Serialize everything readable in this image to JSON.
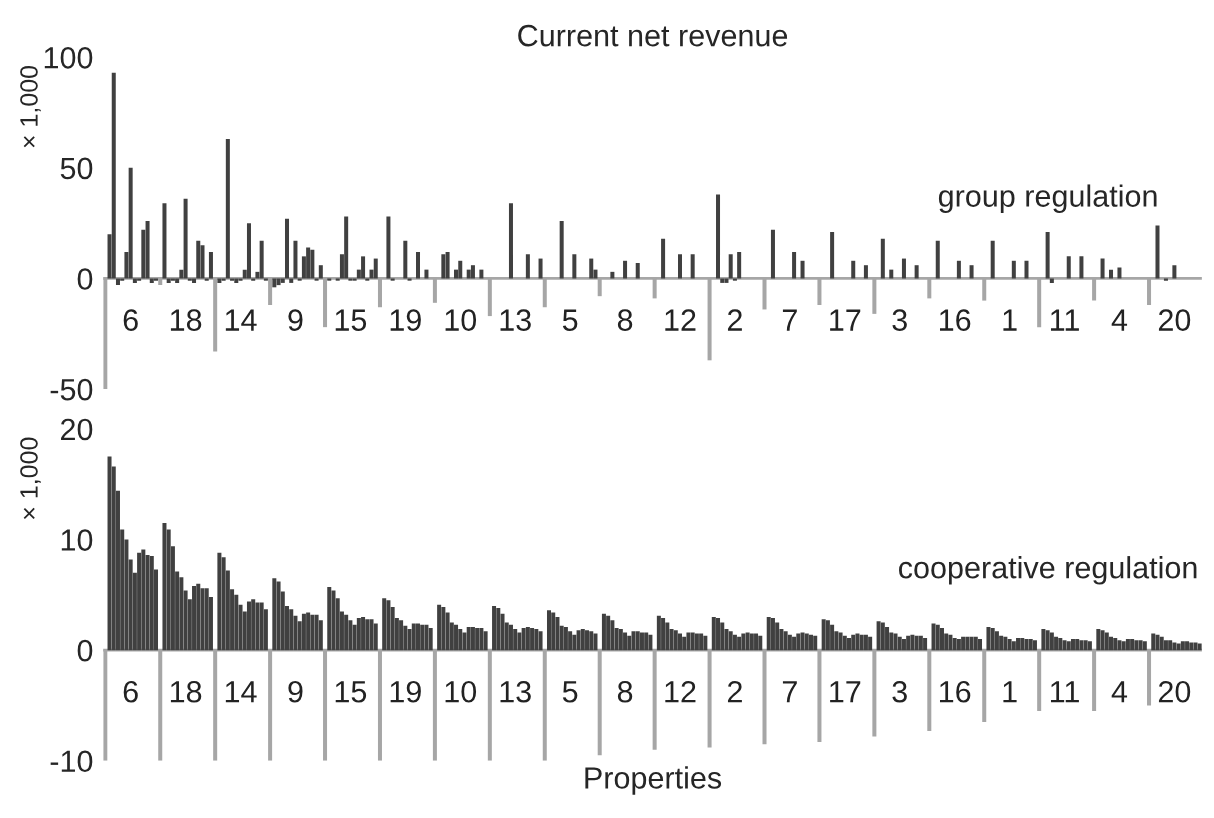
{
  "chart_data": [
    {
      "type": "bar",
      "title": "Current net revenue",
      "ylabel": "× 1,000",
      "annotations": [
        "group regulation"
      ],
      "categories": [
        "6",
        "18",
        "14",
        "9",
        "15",
        "19",
        "10",
        "13",
        "5",
        "8",
        "12",
        "2",
        "7",
        "17",
        "3",
        "16",
        "1",
        "11",
        "4",
        "20"
      ],
      "ylim": [
        -50,
        100
      ],
      "yticks": [
        -50,
        0,
        50,
        100
      ],
      "grid": false,
      "legend": false,
      "series": [
        {
          "color": "#a6a6a6",
          "values": [
            -50,
            -3,
            -33,
            -12,
            -22,
            -13,
            -11,
            -17,
            -13,
            -8,
            -9,
            -37,
            -14,
            -12,
            -16,
            -9,
            -10,
            -22,
            -10,
            -12
          ]
        },
        {
          "color": "#404040",
          "values": [
            20,
            34,
            -2,
            -4,
            -1,
            null,
            null,
            null,
            null,
            null,
            null,
            null,
            null,
            null,
            null,
            null,
            null,
            null,
            null,
            null
          ]
        },
        {
          "color": "#404040",
          "values": [
            93,
            -2,
            -1,
            -3,
            null,
            28,
            11,
            null,
            null,
            null,
            18,
            38,
            22,
            null,
            18,
            17,
            17,
            21,
            9,
            24
          ]
        },
        {
          "color": "#404040",
          "values": [
            -3,
            -1,
            63,
            -2,
            -1,
            -1,
            12,
            null,
            null,
            3,
            null,
            -2,
            null,
            21,
            null,
            null,
            null,
            -2,
            null,
            null
          ]
        },
        {
          "color": "#404040",
          "values": [
            -1,
            -2,
            -1,
            27,
            11,
            null,
            null,
            null,
            26,
            null,
            null,
            -2,
            null,
            null,
            4,
            null,
            null,
            null,
            4,
            -1
          ]
        },
        {
          "color": "#404040",
          "values": [
            12,
            4,
            -2,
            -2,
            28,
            null,
            4,
            34,
            null,
            null,
            null,
            11,
            null,
            null,
            null,
            null,
            null,
            null,
            null,
            null
          ]
        },
        {
          "color": "#404040",
          "values": [
            50,
            36,
            -1,
            17,
            -1,
            17,
            8,
            null,
            null,
            8,
            11,
            -1,
            null,
            null,
            null,
            null,
            null,
            null,
            5,
            6
          ]
        },
        {
          "color": "#404040",
          "values": [
            -2,
            -1,
            4,
            -1,
            -1,
            -1,
            null,
            null,
            11,
            null,
            null,
            12,
            12,
            null,
            9,
            8,
            8,
            10,
            null,
            null
          ]
        },
        {
          "color": "#404040",
          "values": [
            -1,
            -2,
            25,
            10,
            4,
            null,
            4,
            null,
            null,
            null,
            null,
            null,
            null,
            8,
            null,
            null,
            null,
            null,
            null,
            null
          ]
        },
        {
          "color": "#404040",
          "values": [
            22,
            17,
            -1,
            14,
            10,
            12,
            6,
            11,
            null,
            7,
            11,
            null,
            8,
            null,
            null,
            null,
            null,
            null,
            null,
            null
          ]
        },
        {
          "color": "#404040",
          "values": [
            26,
            15,
            3,
            13,
            -1,
            null,
            null,
            null,
            null,
            null,
            null,
            null,
            null,
            null,
            6,
            6,
            8,
            10,
            null,
            null
          ]
        },
        {
          "color": "#404040",
          "values": [
            -2,
            -1,
            17,
            -1,
            4,
            4,
            4,
            null,
            9,
            null,
            null,
            null,
            null,
            6,
            null,
            null,
            null,
            null,
            null,
            null
          ]
        },
        {
          "color": "#404040",
          "values": [
            -1,
            12,
            -1,
            6,
            9,
            null,
            null,
            9,
            4,
            null,
            null,
            null,
            null,
            null,
            null,
            null,
            null,
            null,
            null,
            null
          ]
        }
      ]
    },
    {
      "type": "bar",
      "ylabel": "× 1,000",
      "xlabel": "Properties",
      "annotations": [
        "cooperative regulation"
      ],
      "categories": [
        "6",
        "18",
        "14",
        "9",
        "15",
        "19",
        "10",
        "13",
        "5",
        "8",
        "12",
        "2",
        "7",
        "17",
        "3",
        "16",
        "1",
        "11",
        "4",
        "20"
      ],
      "ylim": [
        -10,
        20
      ],
      "yticks": [
        -10,
        0,
        10,
        20
      ],
      "grid": false,
      "legend": false,
      "series": [
        {
          "color": "#a6a6a6",
          "values": [
            -10,
            -10,
            -10,
            -10,
            -10,
            -10,
            -10,
            -10,
            -10,
            -9.5,
            -9,
            -8.8,
            -8.5,
            -8.3,
            -7.8,
            -7.3,
            -6.5,
            -5.5,
            -5.5,
            -5
          ]
        },
        {
          "color": "#404040",
          "values": [
            17.5,
            11.5,
            8.8,
            6.5,
            5.7,
            4.7,
            4.1,
            4,
            3.6,
            3.3,
            3.1,
            3,
            3,
            2.8,
            2.6,
            2.4,
            2.1,
            1.9,
            1.9,
            1.5
          ]
        },
        {
          "color": "#404040",
          "values": [
            16.6,
            10.9,
            8.4,
            6.2,
            5.4,
            4.5,
            3.9,
            3.8,
            3.4,
            3.1,
            2.9,
            2.9,
            2.9,
            2.7,
            2.5,
            2.3,
            2,
            1.8,
            1.8,
            1.4
          ]
        },
        {
          "color": "#404040",
          "values": [
            14.4,
            9.4,
            7.2,
            5.3,
            4.7,
            3.9,
            3.4,
            3.3,
            3,
            2.7,
            2.5,
            2.5,
            2.5,
            2.3,
            2.1,
            2,
            1.7,
            1.6,
            1.6,
            1.2
          ]
        },
        {
          "color": "#404040",
          "values": [
            10.9,
            7.1,
            5.5,
            4,
            3.5,
            2.9,
            2.5,
            2.5,
            2.2,
            2,
            1.9,
            1.9,
            1.9,
            1.7,
            1.6,
            1.5,
            1.3,
            1.2,
            1.2,
            0.9
          ]
        },
        {
          "color": "#404040",
          "values": [
            10,
            6.6,
            5,
            3.7,
            3.2,
            2.7,
            2.3,
            2.3,
            2.1,
            1.9,
            1.8,
            1.7,
            1.7,
            1.6,
            1.5,
            1.4,
            1.2,
            1.1,
            1.1,
            0.9
          ]
        },
        {
          "color": "#404040",
          "values": [
            8.2,
            5.4,
            4.1,
            3.1,
            2.7,
            2.2,
            1.9,
            1.9,
            1.7,
            1.6,
            1.5,
            1.4,
            1.4,
            1.3,
            1.2,
            1.1,
            1,
            0.9,
            0.9,
            0.7
          ]
        },
        {
          "color": "#404040",
          "values": [
            7,
            4.6,
            3.5,
            2.6,
            2.3,
            1.9,
            1.6,
            1.6,
            1.4,
            1.3,
            1.2,
            1.2,
            1.2,
            1.1,
            1,
            1,
            0.8,
            0.8,
            0.8,
            0.6
          ]
        },
        {
          "color": "#404040",
          "values": [
            8.8,
            5.8,
            4.4,
            3.3,
            2.9,
            2.4,
            2.1,
            2,
            1.8,
            1.7,
            1.6,
            1.5,
            1.5,
            1.4,
            1.3,
            1.2,
            1.1,
            1,
            1,
            0.8
          ]
        },
        {
          "color": "#404040",
          "values": [
            9.1,
            6,
            4.6,
            3.4,
            3,
            2.4,
            2.1,
            2.1,
            1.9,
            1.7,
            1.6,
            1.6,
            1.6,
            1.5,
            1.4,
            1.2,
            1.1,
            1,
            1,
            0.8
          ]
        },
        {
          "color": "#404040",
          "values": [
            8.6,
            5.6,
            4.3,
            3.2,
            2.8,
            2.3,
            2,
            2,
            1.8,
            1.6,
            1.5,
            1.5,
            1.5,
            1.4,
            1.3,
            1.2,
            1,
            0.9,
            0.9,
            0.7
          ]
        },
        {
          "color": "#404040",
          "values": [
            8.5,
            5.6,
            4.3,
            3.2,
            2.8,
            2.3,
            2,
            1.9,
            1.7,
            1.6,
            1.5,
            1.5,
            1.4,
            1.4,
            1.3,
            1.2,
            1,
            0.9,
            0.9,
            0.7
          ]
        },
        {
          "color": "#404040",
          "values": [
            7.3,
            4.8,
            3.7,
            2.7,
            2.4,
            2,
            1.7,
            1.7,
            1.5,
            1.4,
            1.3,
            1.3,
            1.3,
            1.2,
            1.1,
            1,
            0.9,
            0.8,
            0.8,
            0.6
          ]
        }
      ]
    }
  ]
}
